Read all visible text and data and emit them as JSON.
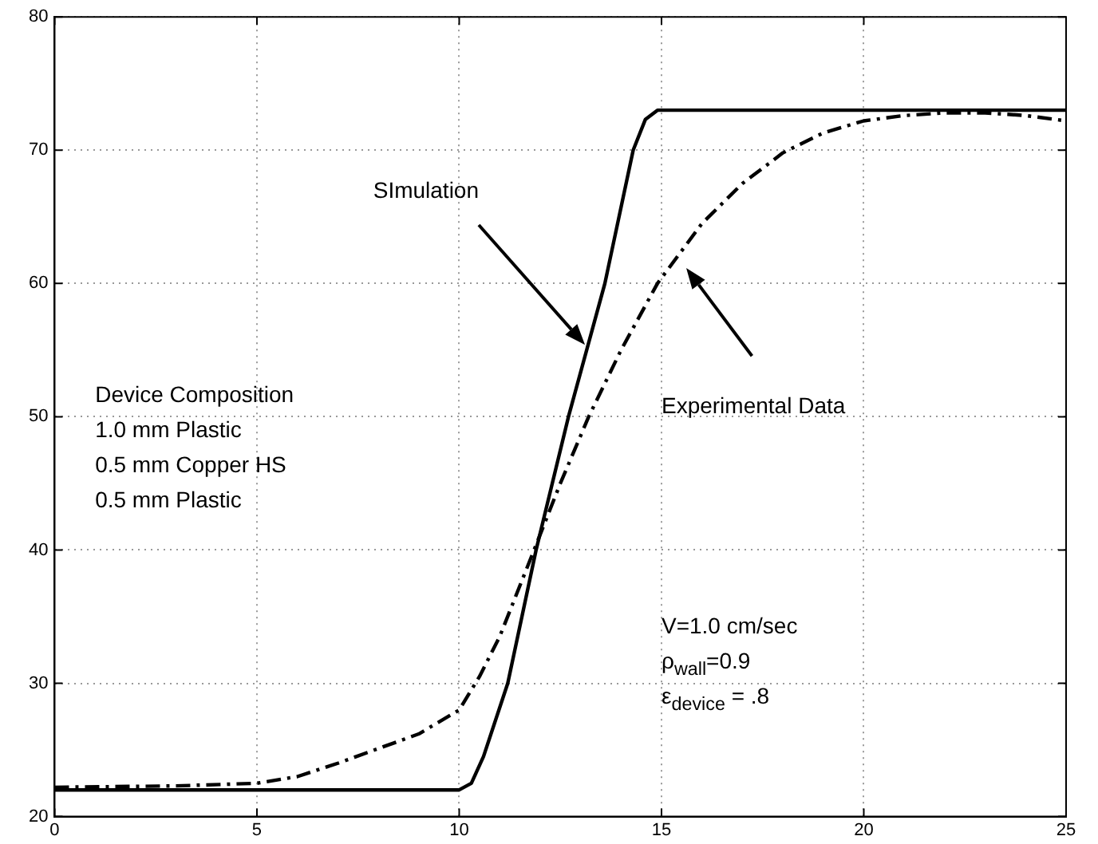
{
  "chart_data": {
    "type": "line",
    "xlim": [
      0,
      25
    ],
    "ylim": [
      20,
      80
    ],
    "xticks": [
      0,
      5,
      10,
      15,
      20,
      25
    ],
    "yticks": [
      20,
      30,
      40,
      50,
      60,
      70,
      80
    ],
    "grid": true,
    "legend": false,
    "marker": "none",
    "series": [
      {
        "color": "#000000",
        "line_style": "solid",
        "x": [
          0,
          10,
          10.3,
          10.6,
          11.2,
          11.9,
          12.7,
          13.6,
          14.3,
          14.6,
          14.9,
          25
        ],
        "values": [
          22,
          22,
          22.5,
          24.5,
          30,
          40,
          50,
          60,
          70,
          72.3,
          73,
          73
        ]
      },
      {
        "color": "#000000",
        "line_style": "dashed",
        "x": [
          0,
          3,
          5,
          6,
          7,
          8,
          9,
          10,
          10.5,
          11,
          11.85,
          12.5,
          13.2,
          14,
          14.9,
          16,
          17,
          18,
          19,
          20,
          21,
          22,
          23,
          24,
          25
        ],
        "values": [
          22.2,
          22.3,
          22.5,
          23,
          24,
          25.1,
          26.2,
          28,
          30.5,
          33.5,
          40,
          45,
          50,
          55,
          60,
          64.5,
          67.5,
          69.8,
          71.3,
          72.2,
          72.6,
          72.8,
          72.8,
          72.6,
          72.2
        ]
      }
    ],
    "annotations": [
      "SImulation",
      "Experimental Data",
      "Device Composition",
      "1.0 mm Plastic",
      "0.5 mm Copper HS",
      "0.5 mm Plastic",
      "V=1.0 cm/sec",
      "ρ$_{wall}$=0.9",
      "ε$_{device}$ = .8"
    ]
  }
}
